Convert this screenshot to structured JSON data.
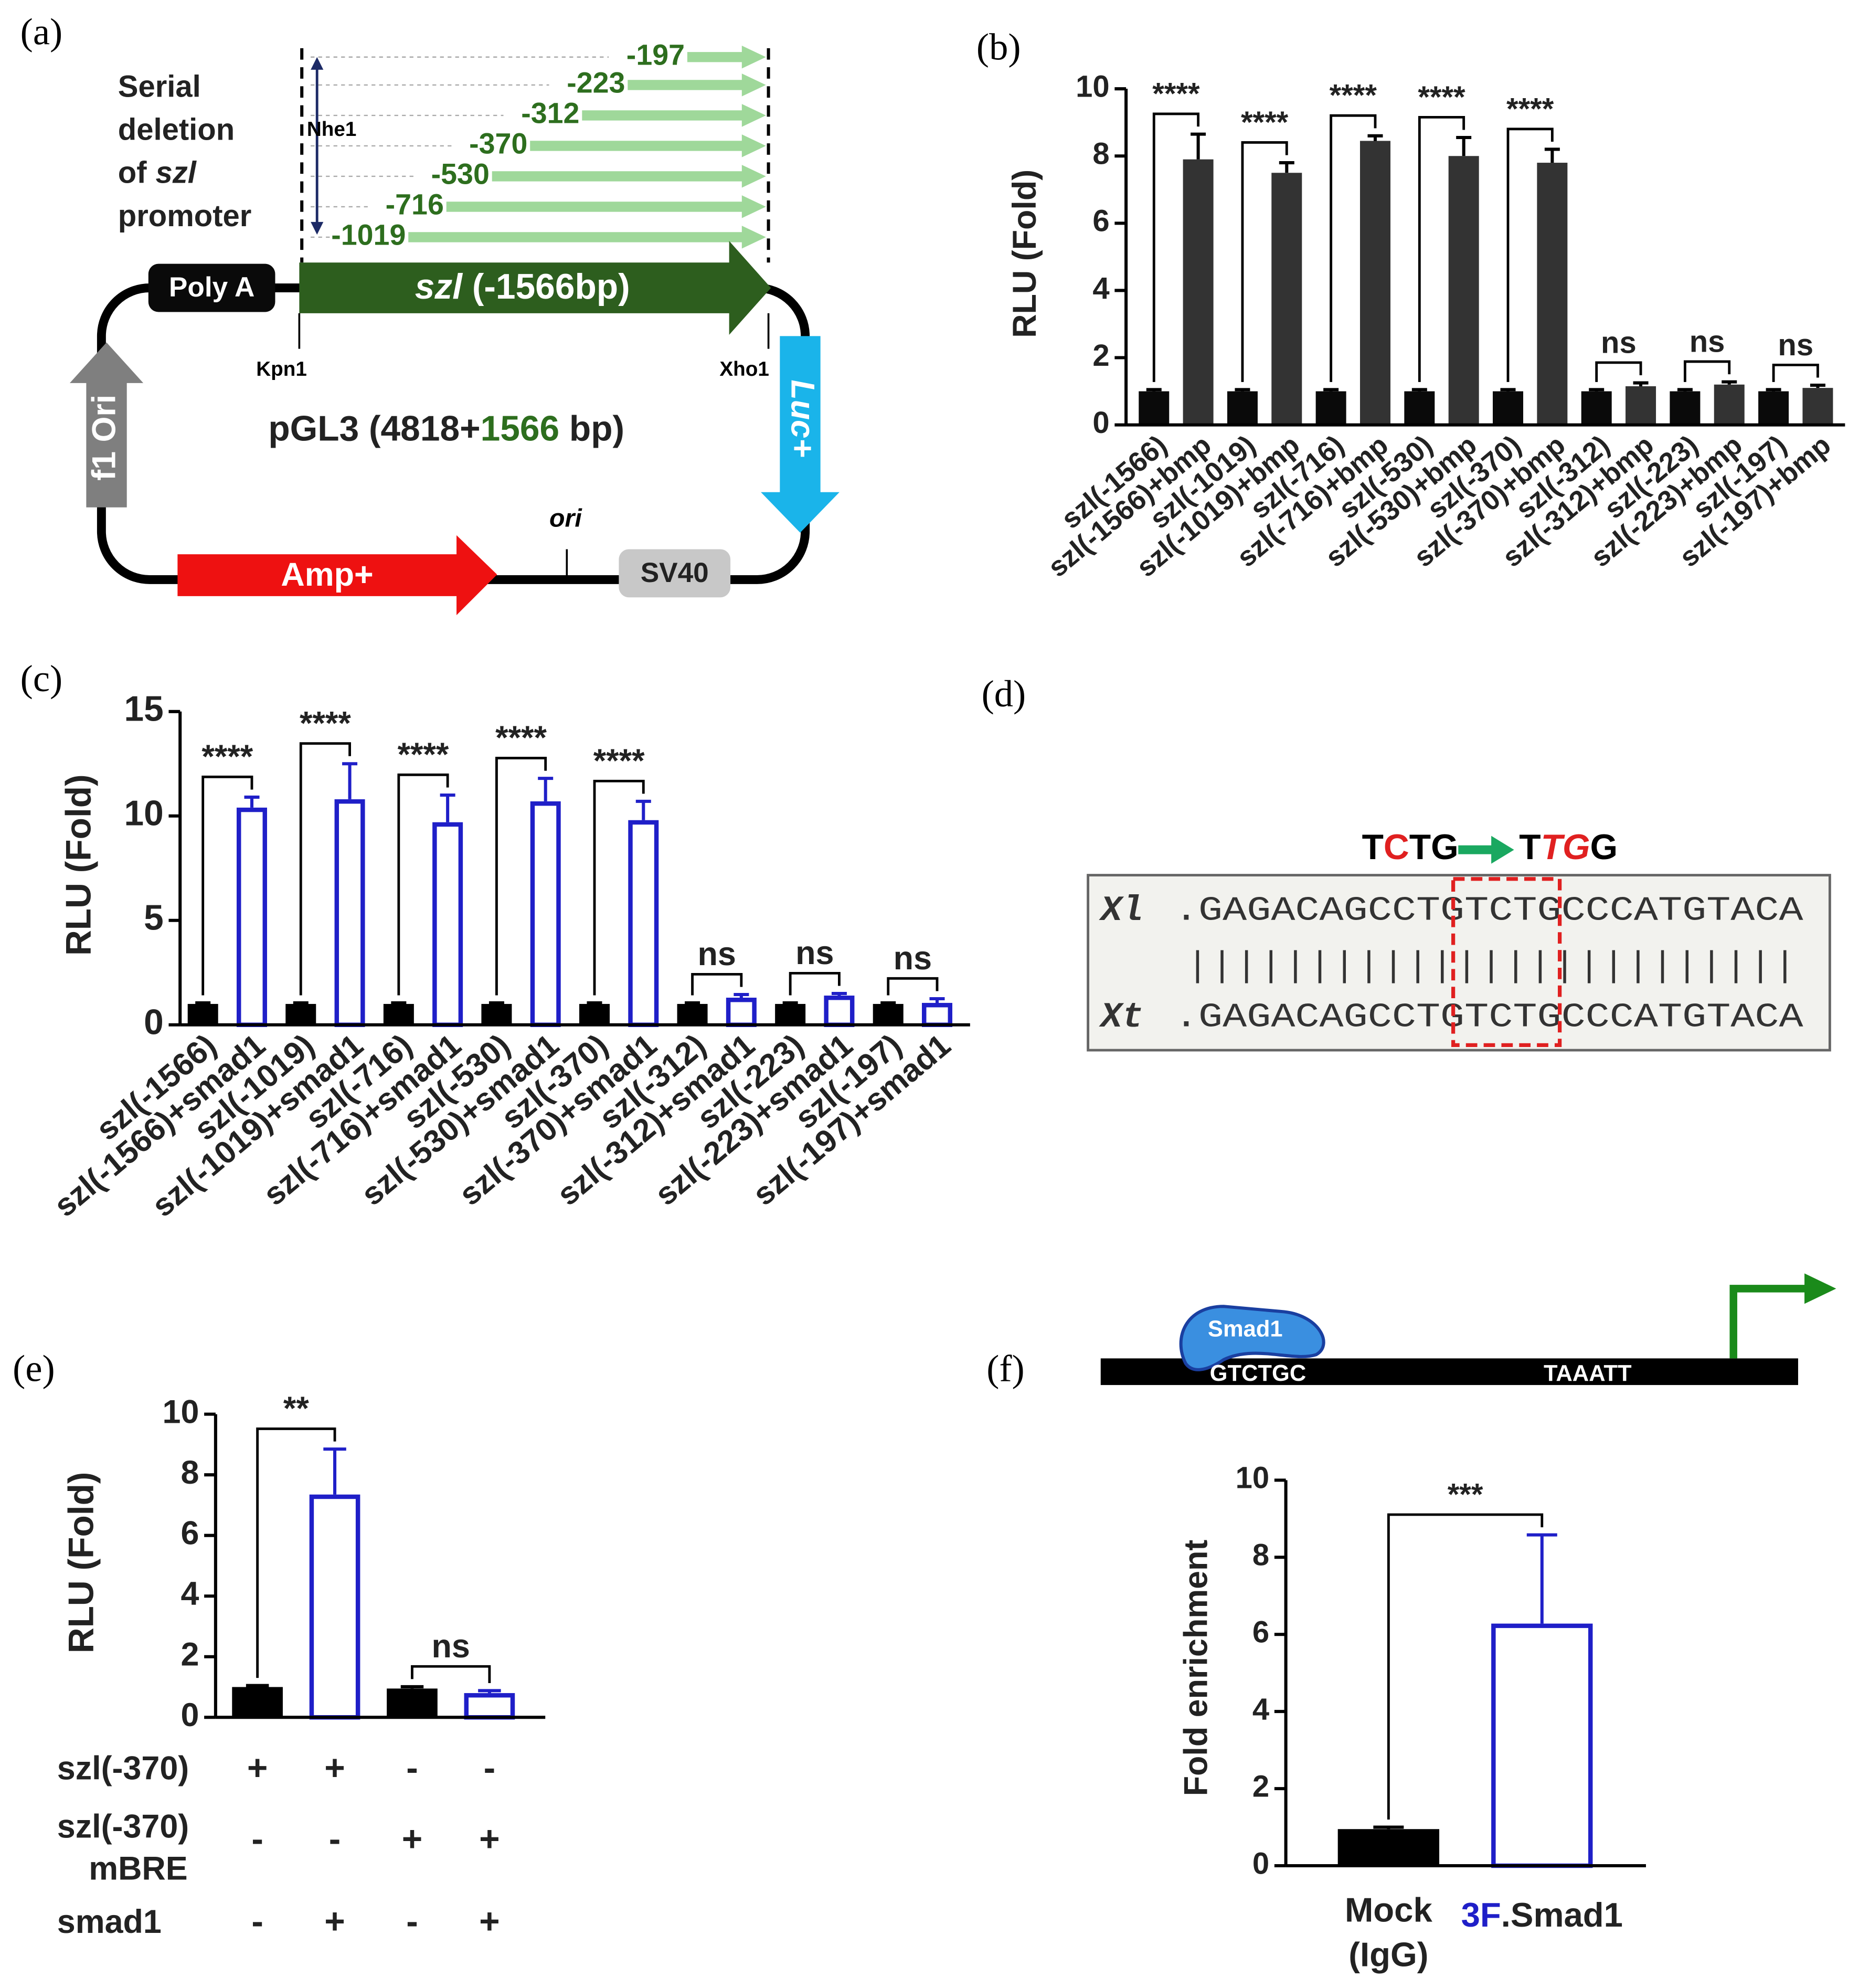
{
  "panel_labels": [
    "(a)",
    "(b)",
    "(c)",
    "(d)",
    "(e)",
    "(f)"
  ],
  "plasmid": {
    "caption": [
      "Serial",
      "deletion",
      "of",
      "szl",
      "promoter"
    ],
    "deletions": [
      "-197",
      "-223",
      "-312",
      "-370",
      "-530",
      "-716",
      "-1019"
    ],
    "nhe": "Nhe1",
    "polya": "Poly A",
    "insert": [
      "szl",
      " (-1566bp)"
    ],
    "kpn": "Kpn1",
    "xho": "Xho1",
    "f1": "f1 Ori",
    "luc": "Luc+",
    "name": [
      "pGL3 (4818+",
      "1566",
      " bp)"
    ],
    "ori": "ori",
    "amp": "Amp+",
    "sv40": "SV40"
  },
  "mutation": {
    "from": [
      "T",
      "C",
      "TG"
    ],
    "to": [
      "T",
      "TG",
      "G"
    ],
    "species": [
      "Xl",
      "Xt"
    ],
    "sequences": [
      ".GAGACAGCCTGTCTGCCCATGTACA",
      ".GAGACAGCCTGTCTGCCCATGTACA"
    ],
    "match": "|||||||||||||||||||||||||"
  },
  "promoter": {
    "factor": "Smad1",
    "site": "GTCTGC",
    "box": "TAAATT"
  },
  "chart_data": [
    {
      "type": "bar",
      "ylabel": "RLU (Fold)",
      "categories": [
        "szl(-1566)",
        "szl(-1566)+bmp",
        "szl(-1019)",
        "szl(-1019)+bmp",
        "szl(-716)",
        "szl(-716)+bmp",
        "szl(-530)",
        "szl(-530)+bmp",
        "szl(-370)",
        "szl(-370)+bmp",
        "szl(-312)",
        "szl(-312)+bmp",
        "szl(-223)",
        "szl(-223)+bmp",
        "szl(-197)",
        "szl(-197)+bmp"
      ],
      "values": [
        1,
        7.9,
        1,
        7.5,
        1,
        8.45,
        1,
        8.0,
        1,
        7.8,
        1,
        1.15,
        1,
        1.2,
        1,
        1.1
      ],
      "errors": [
        0.05,
        0.75,
        0.05,
        0.3,
        0.05,
        0.15,
        0.05,
        0.55,
        0.05,
        0.4,
        0.05,
        0.1,
        0.05,
        0.08,
        0.05,
        0.08
      ],
      "colors": [
        "#0a0a0a",
        "#333333"
      ],
      "styles": [
        "filled",
        "filled"
      ],
      "ylim": [
        0,
        10
      ],
      "yticks": [
        0,
        2,
        4,
        6,
        8,
        10
      ],
      "annotations": [
        "****",
        "****",
        "****",
        "****",
        "****",
        "ns",
        "ns",
        "ns"
      ]
    },
    {
      "type": "bar",
      "ylabel": "RLU (Fold)",
      "categories": [
        "szl(-1566)",
        "szl(-1566)+smad1",
        "szl(-1019)",
        "szl(-1019)+smad1",
        "szl(-716)",
        "szl(-716)+smad1",
        "szl(-530)",
        "szl(-530)+smad1",
        "szl(-370)",
        "szl(-370)+smad1",
        "szl(-312)",
        "szl(-312)+smad1",
        "szl(-223)",
        "szl(-223)+smad1",
        "szl(-197)",
        "szl(-197)+smad1"
      ],
      "values": [
        1,
        10.4,
        1,
        10.8,
        1,
        9.7,
        1,
        10.7,
        1,
        9.8,
        1,
        1.3,
        1,
        1.4,
        1,
        1.05
      ],
      "errors": [
        0.05,
        0.5,
        0.05,
        1.7,
        0.05,
        1.3,
        0.05,
        1.1,
        0.05,
        0.9,
        0.05,
        0.15,
        0.05,
        0.1,
        0.05,
        0.2
      ],
      "colors": [
        "#000000",
        "#1f1fc8"
      ],
      "styles": [
        "filled",
        "outlined"
      ],
      "ylim": [
        0,
        15
      ],
      "yticks": [
        0,
        5,
        10,
        15
      ],
      "annotations": [
        "****",
        "****",
        "****",
        "****",
        "****",
        "ns",
        "ns",
        "ns"
      ]
    },
    {
      "type": "bar",
      "ylabel": "RLU (Fold)",
      "values": [
        1,
        7.35,
        0.95,
        0.8
      ],
      "errors": [
        0.05,
        1.5,
        0.06,
        0.08
      ],
      "colors": [
        "#000000",
        "#1f1fc8"
      ],
      "styles": [
        "filled",
        "outlined"
      ],
      "ylim": [
        0,
        10
      ],
      "yticks": [
        0,
        2,
        4,
        6,
        8,
        10
      ],
      "annotations": [
        "**",
        "ns"
      ],
      "conditions": {
        "labels": [
          [
            "szl(-370)"
          ],
          [
            "szl(-370)",
            "mBRE"
          ],
          [
            "smad1"
          ]
        ],
        "marks": [
          [
            "+",
            "+",
            "-",
            "-"
          ],
          [
            "-",
            "-",
            "+",
            "+"
          ],
          [
            "-",
            "+",
            "-",
            "+"
          ]
        ]
      }
    },
    {
      "type": "bar",
      "ylabel": "Fold enrichment",
      "categories": [
        [
          "Mock",
          "(IgG)"
        ],
        [
          "3F",
          ".Smad1"
        ]
      ],
      "values": [
        0.95,
        6.28
      ],
      "errors": [
        0.05,
        2.3
      ],
      "colors": [
        "#000000",
        "#1f1fc8"
      ],
      "styles": [
        "filled",
        "outlined"
      ],
      "ylim": [
        0,
        10
      ],
      "yticks": [
        0,
        2,
        4,
        6,
        8,
        10
      ],
      "annotations": [
        "***"
      ]
    }
  ]
}
